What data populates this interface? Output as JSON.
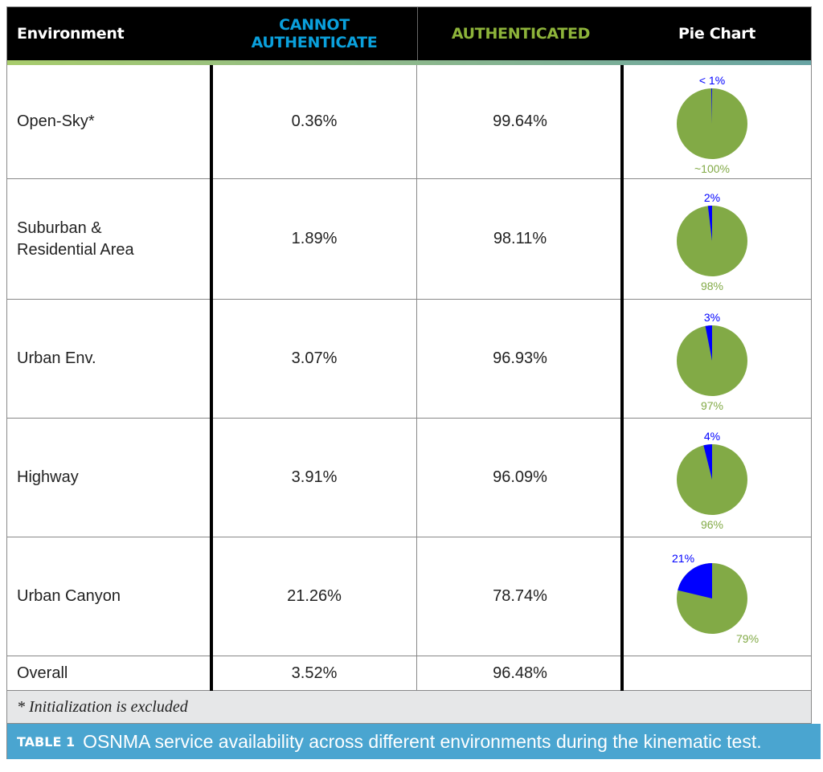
{
  "headers": {
    "environment": "Environment",
    "cannot_line1": "CANNOT",
    "cannot_line2": "AUTHENTICATE",
    "authenticated": "AUTHENTICATED",
    "pie": "Pie Chart"
  },
  "colors": {
    "cannot": "#0aa0dc",
    "authenticated": "#8db33a",
    "pie_blue": "#0000ff",
    "pie_green": "#82aa46"
  },
  "rows": [
    {
      "env": "Open-Sky*",
      "cannot": "0.36%",
      "auth": "99.64%",
      "pie_cannot": 0.36,
      "label_top": "< 1%",
      "label_bottom": "~100%"
    },
    {
      "env": "Suburban & Residential Area",
      "cannot": "1.89%",
      "auth": "98.11%",
      "pie_cannot": 1.89,
      "label_top": "2%",
      "label_bottom": "98%"
    },
    {
      "env": "Urban Env.",
      "cannot": "3.07%",
      "auth": "96.93%",
      "pie_cannot": 3.07,
      "label_top": "3%",
      "label_bottom": "97%"
    },
    {
      "env": "Highway",
      "cannot": "3.91%",
      "auth": "96.09%",
      "pie_cannot": 3.91,
      "label_top": "4%",
      "label_bottom": "96%"
    },
    {
      "env": "Urban Canyon",
      "cannot": "21.26%",
      "auth": "78.74%",
      "pie_cannot": 21.26,
      "label_top": "21%",
      "label_bottom": "79%"
    }
  ],
  "overall": {
    "env": "Overall",
    "cannot": "3.52%",
    "auth": "96.48%"
  },
  "footnote": "* Initialization is excluded",
  "caption": {
    "label": "TABLE 1",
    "text": "OSNMA service availability across different environments during the kinematic test."
  }
}
